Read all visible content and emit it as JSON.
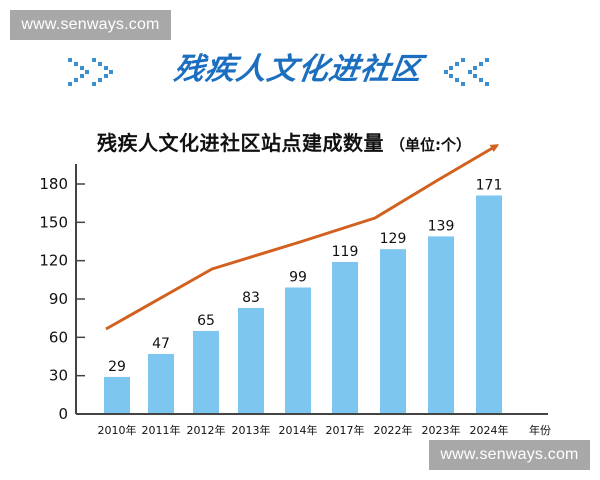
{
  "watermark": {
    "top": "www.senways.com",
    "bottom": "www.senways.com"
  },
  "banner": {
    "title": "残疾人文化进社区"
  },
  "colors": {
    "bar": "#7cc6ef",
    "trend_line": "#d2611f",
    "banner_title": "#1c6fc0",
    "chevron": "#3a8fd0",
    "axis": "#444444"
  },
  "chart_data": {
    "type": "bar",
    "title": "残疾人文化进社区站点建成数量",
    "unit": "（单位:个）",
    "xlabel": "年份",
    "ylabel": "",
    "categories": [
      "2010年",
      "2011年",
      "2012年",
      "2013年",
      "2014年",
      "2017年",
      "2022年",
      "2023年",
      "2024年"
    ],
    "values": [
      29,
      47,
      65,
      83,
      99,
      119,
      129,
      139,
      171
    ],
    "yticks": [
      0,
      30,
      60,
      90,
      120,
      150,
      180
    ],
    "ylim": [
      0,
      195
    ],
    "grid": false,
    "legend": null,
    "annotations": [
      "orange upward trend arrow across bars"
    ]
  }
}
